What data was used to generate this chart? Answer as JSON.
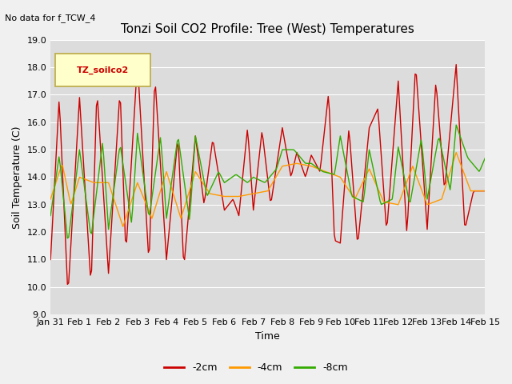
{
  "title": "Tonzi Soil CO2 Profile: Tree (West) Temperatures",
  "subtitle": "No data for f_TCW_4",
  "ylabel": "Soil Temperature (C)",
  "xlabel": "Time",
  "ylim": [
    9.0,
    19.0
  ],
  "ytick_vals": [
    9.0,
    10.0,
    11.0,
    12.0,
    13.0,
    14.0,
    15.0,
    16.0,
    17.0,
    18.0,
    19.0
  ],
  "ytick_labels": [
    "9.0",
    "10.0",
    "11.0",
    "12.0",
    "13.0",
    "14.0",
    "15.0",
    "16.0",
    "17.0",
    "18.0",
    "19.0"
  ],
  "xtick_labels": [
    "Jan 31",
    "Feb 1",
    "Feb 2",
    "Feb 3",
    "Feb 4",
    "Feb 5",
    "Feb 6",
    "Feb 7",
    "Feb 8",
    "Feb 9",
    "Feb 10",
    "Feb 11",
    "Feb 12",
    "Feb 13",
    "Feb 14",
    "Feb 15"
  ],
  "legend_label": "TZ_soilco2",
  "series_labels": [
    "-2cm",
    "-4cm",
    "-8cm"
  ],
  "series_colors": [
    "#cc0000",
    "#ff9900",
    "#33aa00"
  ],
  "fig_bg": "#f0f0f0",
  "plot_bg": "#dcdcdc",
  "grid_color": "#ffffff",
  "title_fontsize": 11,
  "tick_fontsize": 8,
  "label_fontsize": 9
}
